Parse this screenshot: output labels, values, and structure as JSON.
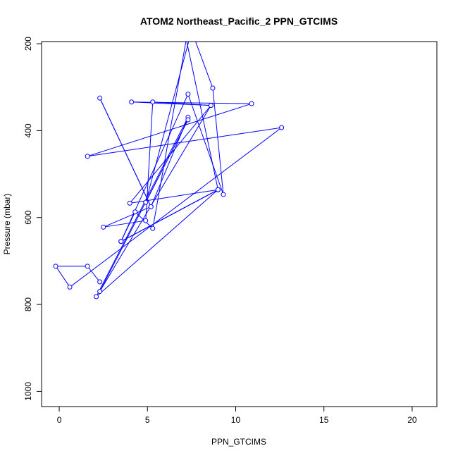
{
  "chart_data": {
    "type": "line",
    "title": "ATOM2 Northeast_Pacific_2 PPN_GTCIMS",
    "xlabel": "PPN_GTCIMS",
    "ylabel": "Pressure (mbar)",
    "xlim": [
      -1,
      21.4
    ],
    "ylim": [
      1035,
      195
    ],
    "y_inverted": true,
    "grid": false,
    "x_ticks": [
      0,
      5,
      10,
      15,
      20
    ],
    "y_ticks": [
      200,
      400,
      600,
      800,
      1000
    ],
    "series_color": "#0000ff",
    "series": [
      {
        "points": [
          [
            2.3,
            748
          ],
          [
            1.6,
            712
          ],
          [
            -0.2,
            712
          ],
          [
            0.6,
            760
          ],
          [
            12.6,
            393
          ],
          [
            1.6,
            459
          ],
          [
            10.9,
            338
          ],
          [
            4.1,
            334
          ],
          [
            8.6,
            342
          ],
          [
            5.3,
            334
          ],
          [
            4.9,
            607
          ],
          [
            2.5,
            622
          ],
          [
            5.2,
            575
          ],
          [
            2.3,
            325
          ],
          [
            5.2,
            575
          ],
          [
            7.3,
            369
          ],
          [
            2.1,
            782
          ],
          [
            9.0,
            536
          ],
          [
            3.5,
            655
          ],
          [
            7.3,
            316
          ],
          [
            9.3,
            547
          ],
          [
            8.7,
            302
          ],
          [
            7.5,
            170
          ],
          [
            4.9,
            565
          ],
          [
            7.3,
            375
          ],
          [
            2.3,
            770
          ],
          [
            8.6,
            342
          ],
          [
            4.0,
            567
          ],
          [
            9.0,
            536
          ],
          [
            7.2,
            190
          ],
          [
            5.3,
            625
          ],
          [
            4.3,
            587
          ],
          [
            3.5,
            655
          ],
          [
            9.0,
            536
          ],
          [
            3.5,
            655
          ]
        ]
      }
    ]
  }
}
